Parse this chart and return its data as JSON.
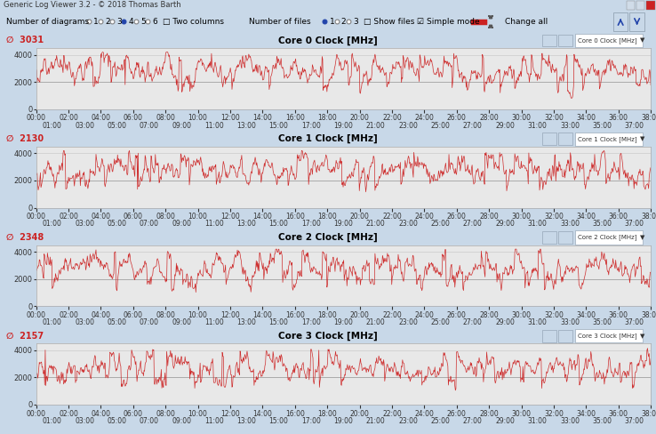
{
  "title_bar": "Generic Log Viewer 3.2 - © 2018 Thomas Barth",
  "cores": [
    {
      "title": "Core 0 Clock [MHz]",
      "current_val": "3031",
      "label": "Core 0 Clock [MHz]"
    },
    {
      "title": "Core 1 Clock [MHz]",
      "current_val": "2130",
      "label": "Core 1 Clock [MHz]"
    },
    {
      "title": "Core 2 Clock [MHz]",
      "current_val": "2348",
      "label": "Core 2 Clock [MHz]"
    },
    {
      "title": "Core 3 Clock [MHz]",
      "current_val": "2157",
      "label": "Core 3 Clock [MHz]"
    }
  ],
  "yticks": [
    0,
    2000,
    4000
  ],
  "ylim": [
    0,
    4500
  ],
  "line_color": "#cc2222",
  "plot_bg": "#e8e8e8",
  "panel_header_bg": "#dce8f4",
  "window_bg": "#c8d8e8",
  "titlebar_bg": "#b8cce0",
  "toolbar_bg": "#dce8f4",
  "border_color": "#a0b0c0",
  "grid_color": "#b8b8b8",
  "random_seed": 42,
  "n_points": 1140,
  "x_max_min": 38
}
